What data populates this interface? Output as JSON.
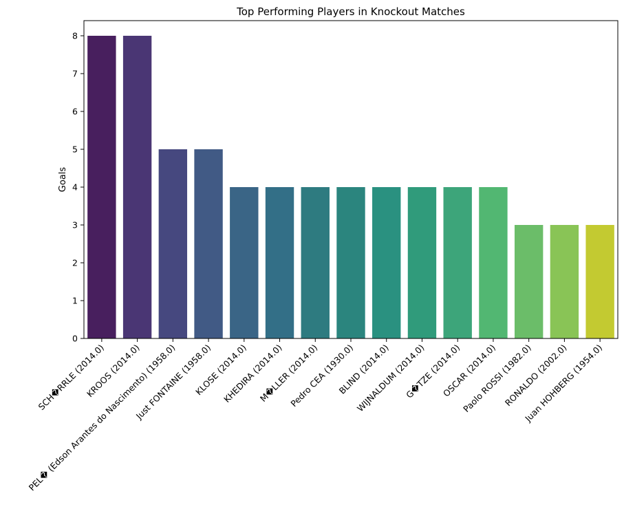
{
  "chart_data": {
    "type": "bar",
    "title": "Top Performing Players in Knockout Matches",
    "xlabel": "",
    "ylabel": "Goals",
    "ylim": [
      0,
      8.4
    ],
    "yticks": [
      0,
      1,
      2,
      3,
      4,
      5,
      6,
      7,
      8
    ],
    "grid": false,
    "legend": "none",
    "categories": [
      "SCH�RRLE (2014.0)",
      "KROOS (2014.0)",
      "PEL� (Edson Arantes do Nascimento) (1958.0)",
      "Just FONTAINE (1958.0)",
      "KLOSE (2014.0)",
      "KHEDIRA (2014.0)",
      "M�LLER (2014.0)",
      "Pedro CEA (1930.0)",
      "BLIND (2014.0)",
      "WIJNALDUM (2014.0)",
      "G�TZE (2014.0)",
      "OSCAR (2014.0)",
      "Paolo ROSSI (1982.0)",
      "RONALDO (2002.0)",
      "Juan HOHBERG (1954.0)"
    ],
    "values": [
      8,
      8,
      5,
      5,
      4,
      4,
      4,
      4,
      4,
      4,
      4,
      4,
      3,
      3,
      3
    ],
    "colors": [
      "#481f5e",
      "#4a3674",
      "#46487f",
      "#415a85",
      "#3a6586",
      "#336f87",
      "#2e7b80",
      "#2b857e",
      "#2a9180",
      "#309b7b",
      "#3da57a",
      "#52b772",
      "#6bbd69",
      "#89c456",
      "#a6c949"
    ],
    "last_color": "#c3ca31"
  }
}
